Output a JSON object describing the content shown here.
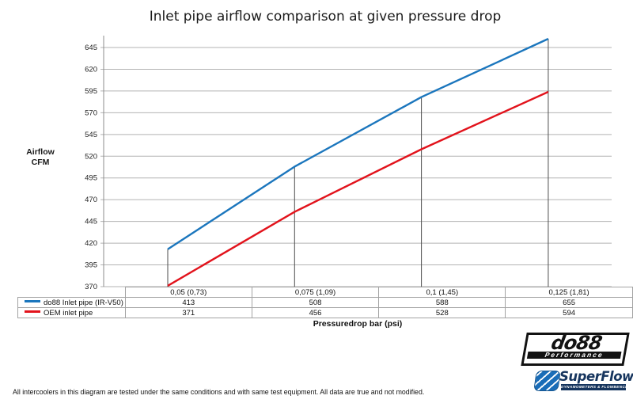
{
  "page": {
    "title": "Inlet pipe airflow comparison at given pressure drop",
    "y_axis_title_line1": "Airflow",
    "y_axis_title_line2": "CFM",
    "x_axis_title": "Pressuredrop bar (psi)",
    "footer_note": "All intercoolers in this diagram are tested under the same conditions and with same test equipment. All data are true and not modified."
  },
  "chart_data": {
    "type": "line",
    "title": "Inlet pipe airflow comparison at given pressure drop",
    "categories": [
      "0,05 (0,73)",
      "0,075 (1,09)",
      "0,1 (1,45)",
      "0,125 (1,81)"
    ],
    "series": [
      {
        "name": "do88 Inlet pipe (IR-V50)",
        "color": "#1b76bd",
        "values": [
          413,
          508,
          588,
          655
        ]
      },
      {
        "name": "OEM inlet pipe",
        "color": "#e2131c",
        "values": [
          371,
          456,
          528,
          594
        ]
      }
    ],
    "xlabel": "Pressuredrop bar (psi)",
    "ylabel": "Airflow CFM",
    "ylim": [
      370,
      645
    ],
    "yticks": [
      645,
      620,
      595,
      570,
      545,
      520,
      495,
      470,
      445,
      420,
      395,
      370
    ],
    "grid": "horizontal",
    "gridline_color": "#b3b3b3",
    "axis_color": "#8c8c8c",
    "dropline_color": "#4d4d4d",
    "droplines": true,
    "legend_position": "table-rows-left"
  },
  "logos": {
    "do88": {
      "text": "do88",
      "subtitle": "Performance"
    },
    "superflow": {
      "text": "SuperFlow",
      "subtitle": "DYNAMOMETERS & FLOWBENCHES"
    }
  }
}
